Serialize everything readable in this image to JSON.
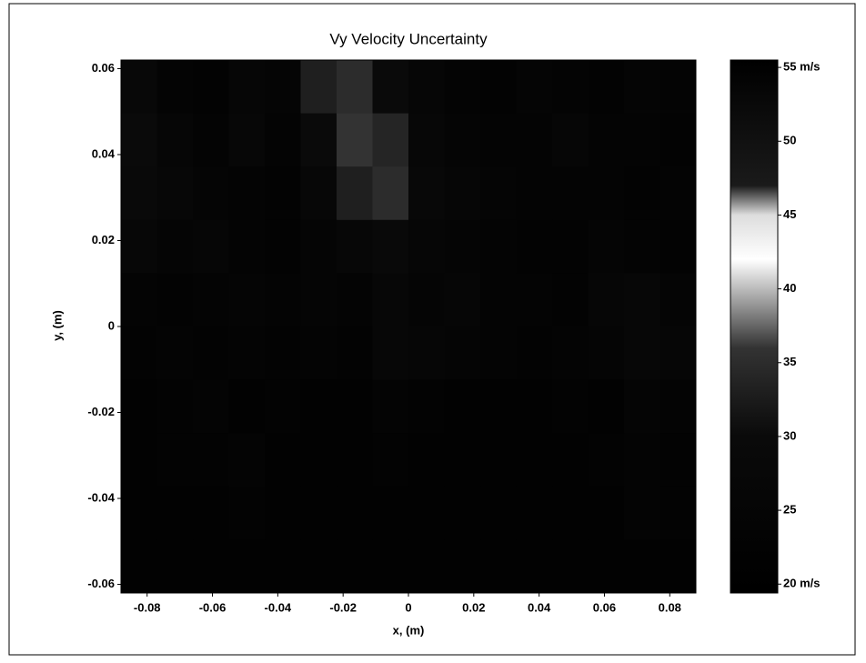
{
  "chart_data": {
    "type": "heatmap",
    "title": "Vy Velocity Uncertainty",
    "xlabel": "x, (m)",
    "ylabel": "y, (m)",
    "xlim": [
      -0.088,
      0.088
    ],
    "ylim": [
      -0.062,
      0.062
    ],
    "xticks": [
      -0.08,
      -0.06,
      -0.04,
      -0.02,
      0,
      0.02,
      0.04,
      0.06,
      0.08
    ],
    "yticks": [
      0.06,
      0.04,
      0.02,
      0,
      -0.02,
      -0.04,
      -0.06
    ],
    "values": [
      [
        28,
        24,
        23,
        26,
        25,
        33,
        35,
        30,
        26,
        24,
        23,
        25,
        24,
        23,
        25,
        24
      ],
      [
        30,
        26,
        24,
        27,
        24,
        30,
        36,
        34,
        27,
        25,
        24,
        24,
        26,
        24,
        24,
        23
      ],
      [
        29,
        27,
        25,
        24,
        23,
        27,
        33,
        35,
        28,
        26,
        25,
        24,
        24,
        24,
        23,
        24
      ],
      [
        27,
        25,
        26,
        24,
        23,
        25,
        27,
        29,
        26,
        25,
        24,
        23,
        23,
        25,
        24,
        23
      ],
      [
        24,
        23,
        24,
        25,
        24,
        25,
        24,
        27,
        25,
        26,
        24,
        24,
        23,
        26,
        27,
        25
      ],
      [
        23,
        24,
        23,
        24,
        23,
        24,
        23,
        27,
        26,
        25,
        24,
        23,
        24,
        25,
        27,
        26
      ],
      [
        22,
        23,
        24,
        22,
        23,
        22,
        22,
        24,
        23,
        22,
        22,
        22,
        23,
        22,
        25,
        24
      ],
      [
        22,
        23,
        23,
        24,
        22,
        22,
        22,
        23,
        22,
        22,
        22,
        22,
        22,
        23,
        24,
        23
      ],
      [
        22,
        22,
        22,
        23,
        22,
        22,
        22,
        22,
        22,
        22,
        22,
        22,
        22,
        22,
        24,
        23
      ],
      [
        22,
        22,
        22,
        22,
        22,
        22,
        22,
        22,
        22,
        22,
        22,
        22,
        22,
        22,
        22,
        22
      ]
    ],
    "clim": [
      19.4,
      55.5
    ],
    "cticks": [
      {
        "value": 55,
        "label": "55 m/s"
      },
      50,
      45,
      40,
      35,
      30,
      25,
      {
        "value": 20,
        "label": "20 m/s"
      }
    ],
    "colormap": [
      [
        19.4,
        "#000000"
      ],
      [
        30,
        "#0a0a0a"
      ],
      [
        36,
        "#333333"
      ],
      [
        38,
        "#777777"
      ],
      [
        42,
        "#ffffff"
      ],
      [
        45,
        "#dddddd"
      ],
      [
        47,
        "#1a1a1a"
      ],
      [
        55.5,
        "#000000"
      ]
    ]
  }
}
